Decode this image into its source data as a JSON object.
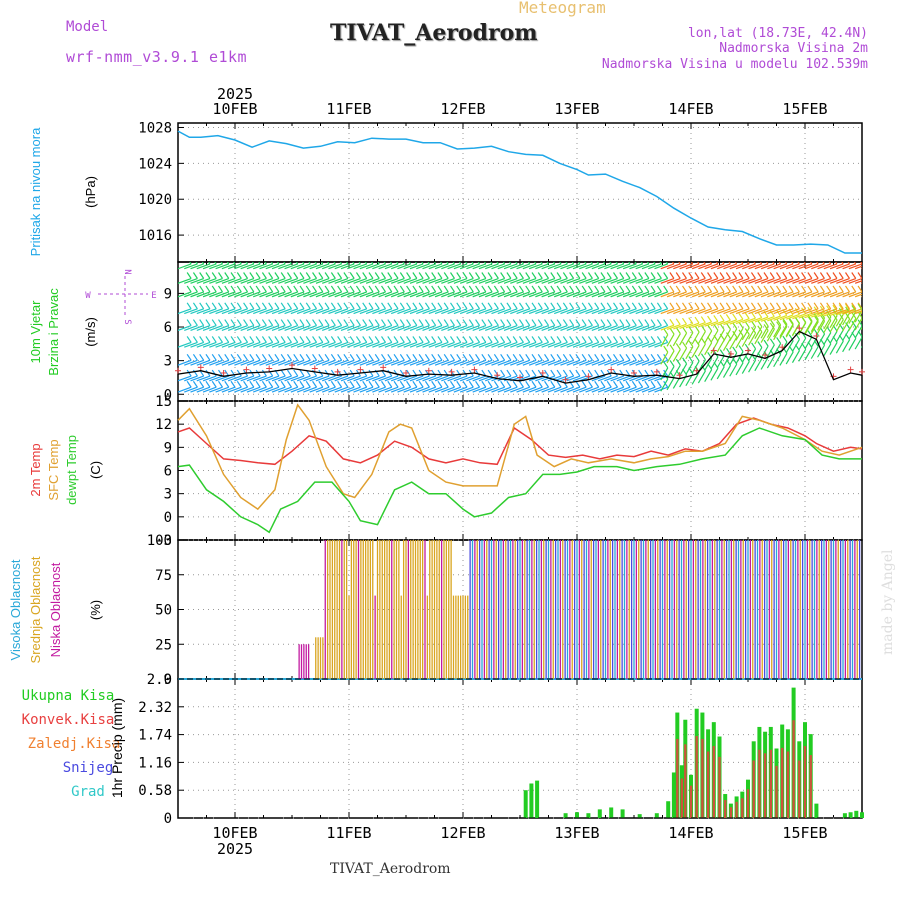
{
  "header": {
    "model_label": "Model",
    "model_name": "wrf-nmm_v3.9.1 e1km",
    "meteogram_label": "Meteogram",
    "station_title": "TIVAT_Aerodrom",
    "location_line": "lon,lat (18.73E, 42.4N)",
    "elevation_line": "Nadmorska Visina 2m",
    "model_elevation_line": "Nadmorska Visina u modelu 102.539m",
    "footer_station": "TIVAT_Aerodrom",
    "watermark": "made by Angel"
  },
  "time_axis": {
    "year": "2025",
    "date_labels": [
      "10FEB",
      "11FEB",
      "12FEB",
      "13FEB",
      "14FEB",
      "15FEB"
    ],
    "range_days": [
      9.5,
      15.5
    ]
  },
  "colors": {
    "pressure": "#1fa7e8",
    "temp2m": "#e83a3a",
    "sfc_temp": "#e0a030",
    "dewpoint": "#2ecc2e",
    "high_cloud": "#2aa8d8",
    "mid_cloud": "#d9a520",
    "low_cloud": "#c21aa0",
    "total_precip": "#22cc22",
    "conv_precip": "#e84040",
    "frozen_precip": "#f08030",
    "snow": "#4a4ae0",
    "graupel": "#30c8c8"
  },
  "chart_data": [
    {
      "type": "line",
      "panel": "pressure",
      "label_left": "Pritisak na nivou mora",
      "unit": "(hPa)",
      "ylim": [
        1013,
        1028.5
      ],
      "yticks": [
        "1016",
        "1020",
        "1024",
        "1028"
      ],
      "series": [
        {
          "x": [
            9.5,
            9.6,
            9.7,
            9.85,
            10.0,
            10.15,
            10.3,
            10.45,
            10.6,
            10.75,
            10.9,
            11.05,
            11.2,
            11.35,
            11.5,
            11.65,
            11.8,
            11.95,
            12.1,
            12.25,
            12.4,
            12.55,
            12.7,
            12.85,
            13.0,
            13.1,
            13.25,
            13.4,
            13.55,
            13.7,
            13.85,
            14.0,
            14.15,
            14.3,
            14.45,
            14.6,
            14.75,
            14.9,
            15.05,
            15.2,
            15.35,
            15.5
          ],
          "values": [
            1027.6,
            1026.9,
            1026.9,
            1027.1,
            1026.6,
            1025.8,
            1026.5,
            1026.2,
            1025.7,
            1025.9,
            1026.4,
            1026.3,
            1026.8,
            1026.7,
            1026.7,
            1026.3,
            1026.3,
            1025.6,
            1025.7,
            1025.9,
            1025.3,
            1025.0,
            1024.9,
            1024.0,
            1023.3,
            1022.7,
            1022.8,
            1022.0,
            1021.3,
            1020.3,
            1019.0,
            1017.9,
            1016.9,
            1016.6,
            1016.4,
            1015.6,
            1014.9,
            1014.9,
            1015.0,
            1014.9,
            1014.0,
            1014.0
          ]
        }
      ]
    },
    {
      "type": "line",
      "panel": "wind",
      "label_left": [
        "10m Vjetar",
        "Brzina i Pravac"
      ],
      "unit": "(m/s)",
      "compass": {
        "north": "N",
        "west": "W",
        "east": "E",
        "south": "S"
      },
      "ylim": [
        -0.6,
        11.8
      ],
      "yticks": [
        "0",
        "3",
        "6",
        "9"
      ],
      "series": [
        {
          "x": [
            9.5,
            9.7,
            9.9,
            10.1,
            10.3,
            10.5,
            10.7,
            10.9,
            11.1,
            11.3,
            11.5,
            11.7,
            11.9,
            12.1,
            12.3,
            12.5,
            12.7,
            12.9,
            13.1,
            13.3,
            13.5,
            13.7,
            13.9,
            14.05,
            14.2,
            14.35,
            14.5,
            14.65,
            14.8,
            14.95,
            15.1,
            15.25,
            15.4,
            15.5
          ],
          "values": [
            1.8,
            2.1,
            1.6,
            1.9,
            2.0,
            2.3,
            2.0,
            1.7,
            1.9,
            2.1,
            1.6,
            1.8,
            1.7,
            1.9,
            1.4,
            1.2,
            1.6,
            1.0,
            1.3,
            1.9,
            1.6,
            1.7,
            1.4,
            1.8,
            3.6,
            3.3,
            3.6,
            3.2,
            3.9,
            5.6,
            4.9,
            1.3,
            1.9,
            1.7
          ]
        }
      ]
    },
    {
      "type": "line",
      "panel": "temperature",
      "label_left": [
        "2m Temp",
        "SFC Temp",
        "dewpt Temp"
      ],
      "unit": "(C)",
      "ylim": [
        -3,
        15
      ],
      "yticks": [
        "-3",
        "0",
        "3",
        "6",
        "9",
        "12",
        "15"
      ],
      "series": [
        {
          "name": "2m Temp",
          "x": [
            9.5,
            9.6,
            9.75,
            9.9,
            10.05,
            10.2,
            10.35,
            10.5,
            10.65,
            10.8,
            10.95,
            11.1,
            11.25,
            11.4,
            11.55,
            11.7,
            11.85,
            12.0,
            12.15,
            12.3,
            12.45,
            12.6,
            12.75,
            12.9,
            13.05,
            13.2,
            13.35,
            13.5,
            13.65,
            13.8,
            13.95,
            14.1,
            14.25,
            14.4,
            14.55,
            14.7,
            14.85,
            15.0,
            15.1,
            15.25,
            15.4,
            15.5
          ],
          "values": [
            11.0,
            11.5,
            9.5,
            7.5,
            7.3,
            7.0,
            6.8,
            8.5,
            10.5,
            9.8,
            7.5,
            7.0,
            8.0,
            9.8,
            9.0,
            7.5,
            7.0,
            7.5,
            7.0,
            6.8,
            11.5,
            10.0,
            8.0,
            7.7,
            8.0,
            7.5,
            8.0,
            7.8,
            8.5,
            8.0,
            8.8,
            8.5,
            9.5,
            12.0,
            12.8,
            12.0,
            11.5,
            10.5,
            9.5,
            8.5,
            9.0,
            8.8
          ]
        },
        {
          "name": "SFC Temp",
          "x": [
            9.5,
            9.6,
            9.75,
            9.9,
            10.05,
            10.2,
            10.35,
            10.45,
            10.55,
            10.65,
            10.8,
            10.95,
            11.05,
            11.2,
            11.35,
            11.45,
            11.55,
            11.7,
            11.85,
            12.0,
            12.15,
            12.3,
            12.45,
            12.55,
            12.65,
            12.8,
            12.95,
            13.1,
            13.3,
            13.5,
            13.65,
            13.8,
            13.95,
            14.1,
            14.3,
            14.45,
            14.6,
            14.8,
            15.0,
            15.15,
            15.3,
            15.5
          ],
          "values": [
            12.5,
            14.0,
            10.5,
            5.5,
            2.5,
            1.0,
            3.5,
            10.0,
            14.5,
            12.5,
            6.5,
            3.0,
            2.5,
            5.5,
            11.0,
            12.0,
            11.5,
            6.0,
            4.5,
            4.0,
            4.0,
            4.0,
            12.0,
            13.0,
            8.0,
            6.5,
            7.5,
            7.0,
            7.5,
            7.0,
            7.5,
            7.8,
            8.5,
            8.5,
            9.5,
            13.0,
            12.5,
            11.5,
            10.0,
            8.5,
            8.0,
            9.0
          ]
        },
        {
          "name": "dewpt Temp",
          "x": [
            9.5,
            9.6,
            9.75,
            9.9,
            10.05,
            10.2,
            10.3,
            10.4,
            10.55,
            10.7,
            10.85,
            11.0,
            11.1,
            11.25,
            11.4,
            11.55,
            11.7,
            11.85,
            12.0,
            12.1,
            12.25,
            12.4,
            12.55,
            12.7,
            12.85,
            13.0,
            13.15,
            13.35,
            13.5,
            13.7,
            13.9,
            14.1,
            14.3,
            14.45,
            14.6,
            14.8,
            15.0,
            15.15,
            15.3,
            15.5
          ],
          "values": [
            6.5,
            6.7,
            3.5,
            2.0,
            0.0,
            -1.0,
            -2.0,
            1.0,
            2.0,
            4.5,
            4.5,
            2.0,
            -0.5,
            -1.0,
            3.5,
            4.5,
            3.0,
            3.0,
            1.0,
            0.0,
            0.5,
            2.5,
            3.0,
            5.5,
            5.5,
            5.8,
            6.5,
            6.5,
            6.0,
            6.5,
            6.8,
            7.5,
            8.0,
            10.5,
            11.5,
            10.5,
            10.0,
            8.0,
            7.5,
            7.5
          ]
        }
      ]
    },
    {
      "type": "bar",
      "panel": "cloud_cover",
      "label_left": [
        "Visoka Oblacnost",
        "Srednja Oblacnost",
        "Niska Oblacnost"
      ],
      "unit": "(%)",
      "ylim": [
        0,
        100
      ],
      "yticks": [
        "0",
        "25",
        "50",
        "75",
        "100"
      ]
    },
    {
      "type": "bar",
      "panel": "precipitation",
      "legend": [
        "Ukupna Kisa",
        "Konvek.Kisa",
        "Zaledj.Kisa",
        "Snijeg",
        "Grad"
      ],
      "unit": "1hr Precip (mm)",
      "ylim": [
        0,
        2.9
      ],
      "yticks": [
        "0",
        "0.58",
        "1.16",
        "1.74",
        "2.32",
        "2.9"
      ]
    }
  ]
}
